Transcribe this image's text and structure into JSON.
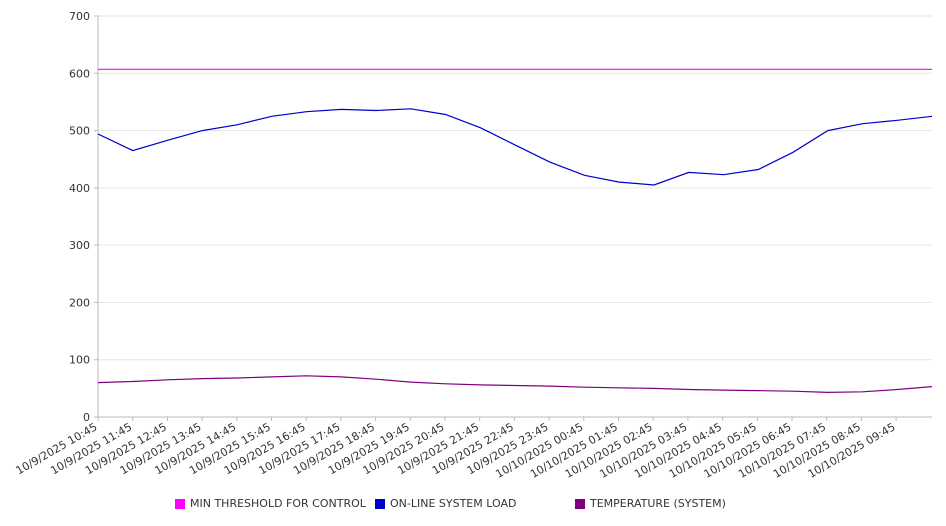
{
  "chart_data": {
    "type": "line",
    "ylim": [
      0,
      700
    ],
    "y_ticks": [
      "0",
      "100",
      "200",
      "300",
      "400",
      "500",
      "600",
      "700"
    ],
    "x_tick_labels": [
      "10/9/2025 10:45",
      "10/9/2025 11:45",
      "10/9/2025 12:45",
      "10/9/2025 13:45",
      "10/9/2025 14:45",
      "10/9/2025 15:45",
      "10/9/2025 16:45",
      "10/9/2025 17:45",
      "10/9/2025 18:45",
      "10/9/2025 19:45",
      "10/9/2025 20:45",
      "10/9/2025 21:45",
      "10/9/2025 22:45",
      "10/9/2025 23:45",
      "10/10/2025 00:45",
      "10/10/2025 01:45",
      "10/10/2025 02:45",
      "10/10/2025 03:45",
      "10/10/2025 04:45",
      "10/10/2025 05:45",
      "10/10/2025 06:45",
      "10/10/2025 07:45",
      "10/10/2025 08:45",
      "10/10/2025 09:45"
    ],
    "grid": true,
    "legend_position": "bottom",
    "series": [
      {
        "name": "MIN THRESHOLD FOR CONTROL",
        "color": "#ff00ff",
        "values": [
          607,
          607,
          607,
          607,
          607,
          607,
          607,
          607,
          607,
          607,
          607,
          607,
          607,
          607,
          607,
          607,
          607,
          607,
          607,
          607,
          607,
          607,
          607,
          607,
          607
        ]
      },
      {
        "name": "ON-LINE SYSTEM LOAD",
        "color": "#0000cc",
        "values": [
          494,
          465,
          483,
          500,
          510,
          525,
          533,
          537,
          535,
          538,
          528,
          505,
          475,
          445,
          422,
          410,
          405,
          427,
          423,
          432,
          462,
          500,
          512,
          518,
          525
        ]
      },
      {
        "name": "TEMPERATURE (SYSTEM)",
        "color": "#800080",
        "values": [
          60,
          62,
          65,
          67,
          68,
          70,
          72,
          70,
          66,
          61,
          58,
          56,
          55,
          54,
          52,
          51,
          50,
          48,
          47,
          46,
          45,
          43,
          44,
          48,
          53
        ]
      }
    ]
  }
}
